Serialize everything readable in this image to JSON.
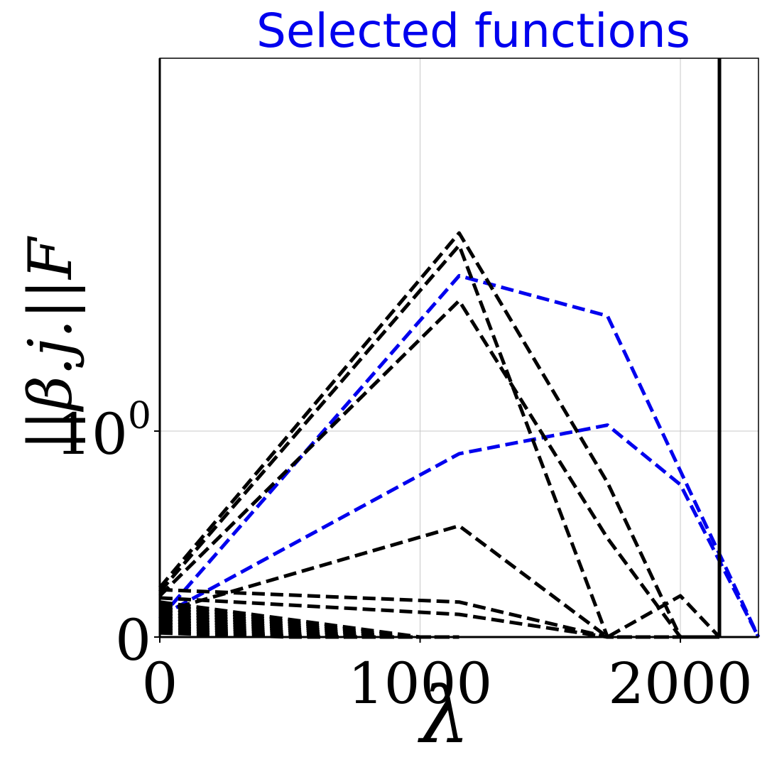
{
  "chart_data": {
    "type": "line",
    "title": "Selected functions",
    "title_color": "#0000ee",
    "xlabel": "λ",
    "ylabel": "||β.j.||F",
    "xlim": [
      0,
      2300
    ],
    "y_scale": "symlog",
    "grid": true,
    "x_ticks": [
      {
        "value": 0,
        "label": "0"
      },
      {
        "value": 1000,
        "label": "1000"
      },
      {
        "value": 2000,
        "label": "2000"
      }
    ],
    "y_ticks": [
      {
        "value": 0,
        "label": "0"
      },
      {
        "value": 1,
        "label": "10^0"
      }
    ],
    "vline": {
      "x": 2150,
      "color": "#000000"
    },
    "colors": {
      "selected": "#0000ee",
      "other": "#000000"
    },
    "series": [
      {
        "color": "#0000ee",
        "style": "dashed",
        "x": [
          0,
          1150,
          1720,
          2300
        ],
        "y": [
          0.09,
          4.6,
          3.1,
          0.0
        ]
      },
      {
        "color": "#0000ee",
        "style": "dashed",
        "x": [
          0,
          1150,
          1720,
          2000,
          2300
        ],
        "y": [
          0.1,
          0.89,
          1.06,
          0.74,
          0.0
        ]
      },
      {
        "color": "#000000",
        "style": "dashed",
        "x": [
          0,
          1150,
          1720,
          2000,
          2150
        ],
        "y": [
          0.24,
          7.0,
          0.75,
          0.0,
          0.0
        ]
      },
      {
        "color": "#000000",
        "style": "dashed",
        "x": [
          0,
          1150,
          1720,
          2000,
          2150
        ],
        "y": [
          0.22,
          6.2,
          0.0,
          0.0,
          0.0
        ]
      },
      {
        "color": "#000000",
        "style": "dashed",
        "x": [
          0,
          1150,
          1720,
          2000,
          2150
        ],
        "y": [
          0.2,
          3.6,
          0.48,
          0.0,
          0.0
        ]
      },
      {
        "color": "#000000",
        "style": "dashed",
        "x": [
          0,
          1150,
          1720,
          2000,
          2150
        ],
        "y": [
          0.12,
          0.54,
          0.0,
          0.2,
          0.0
        ]
      },
      {
        "color": "#000000",
        "style": "dashed",
        "x": [
          0,
          1150,
          1720,
          2000
        ],
        "y": [
          0.23,
          0.17,
          0.0,
          0.0
        ]
      },
      {
        "color": "#000000",
        "style": "dashed",
        "x": [
          0,
          1150,
          1720,
          2000
        ],
        "y": [
          0.19,
          0.11,
          0.0,
          0.0
        ]
      },
      {
        "color": "#000000",
        "style": "dashed",
        "x": [
          0,
          1000,
          1150
        ],
        "y": [
          0.17,
          0.0,
          0.0
        ]
      },
      {
        "color": "#000000",
        "style": "dashed",
        "x": [
          0,
          950,
          1150
        ],
        "y": [
          0.155,
          0.0,
          0.0
        ]
      },
      {
        "color": "#000000",
        "style": "dashed",
        "x": [
          0,
          900,
          1150
        ],
        "y": [
          0.14,
          0.0,
          0.0
        ]
      },
      {
        "color": "#000000",
        "style": "dashed",
        "x": [
          0,
          850,
          1150
        ],
        "y": [
          0.125,
          0.0,
          0.0
        ]
      },
      {
        "color": "#000000",
        "style": "dashed",
        "x": [
          0,
          800,
          1150
        ],
        "y": [
          0.11,
          0.0,
          0.0
        ]
      },
      {
        "color": "#000000",
        "style": "dashed",
        "x": [
          0,
          750,
          1150
        ],
        "y": [
          0.095,
          0.0,
          0.0
        ]
      },
      {
        "color": "#000000",
        "style": "dashed",
        "x": [
          0,
          700,
          1150
        ],
        "y": [
          0.08,
          0.0,
          0.0
        ]
      },
      {
        "color": "#000000",
        "style": "dashed",
        "x": [
          0,
          650,
          1150
        ],
        "y": [
          0.065,
          0.0,
          0.0
        ]
      },
      {
        "color": "#000000",
        "style": "dashed",
        "x": [
          0,
          600,
          1150
        ],
        "y": [
          0.05,
          0.0,
          0.0
        ]
      },
      {
        "color": "#000000",
        "style": "dashed",
        "x": [
          0,
          550,
          1150
        ],
        "y": [
          0.035,
          0.0,
          0.0
        ]
      },
      {
        "color": "#000000",
        "style": "dashed",
        "x": [
          0,
          500,
          1150
        ],
        "y": [
          0.02,
          0.0,
          0.0
        ]
      }
    ]
  }
}
